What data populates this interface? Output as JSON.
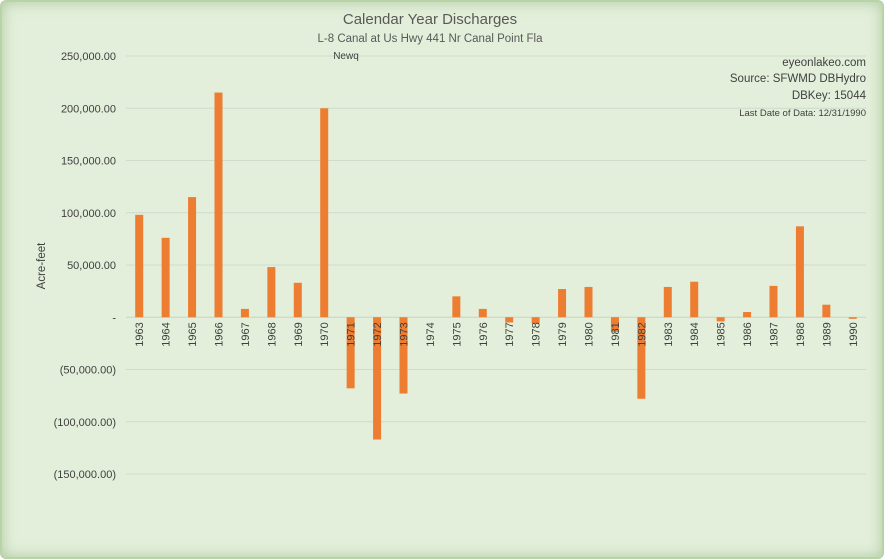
{
  "chart_data": {
    "type": "bar",
    "title": "Calendar Year Discharges",
    "subtitle": "L-8 Canal at Us Hwy 441 Nr Canal Point Fla",
    "series_label": "Newq",
    "ylabel": "Acre-feet",
    "xlabel": "",
    "ylim": [
      -150000,
      250000
    ],
    "ytick_values": [
      250000,
      200000,
      150000,
      100000,
      50000,
      0,
      -50000,
      -100000,
      -150000
    ],
    "ytick_labels": [
      "250,000.00",
      "200,000.00",
      "150,000.00",
      "100,000.00",
      "50,000.00",
      "-",
      "(50,000.00)",
      "(100,000.00)",
      "(150,000.00)"
    ],
    "grid": true,
    "bar_color": "#ed7d31",
    "categories": [
      "1963",
      "1964",
      "1965",
      "1966",
      "1967",
      "1968",
      "1969",
      "1970",
      "1971",
      "1972",
      "1973",
      "1974",
      "1975",
      "1976",
      "1977",
      "1978",
      "1979",
      "1980",
      "1981",
      "1982",
      "1983",
      "1984",
      "1985",
      "1986",
      "1987",
      "1988",
      "1989",
      "1990"
    ],
    "values": [
      98000,
      76000,
      115000,
      215000,
      8000,
      48000,
      33000,
      200000,
      -68000,
      -117000,
      -73000,
      0,
      20000,
      8000,
      -5000,
      -6000,
      27000,
      29000,
      -14000,
      -78000,
      29000,
      34000,
      -4000,
      5000,
      30000,
      87000,
      12000,
      -1500
    ]
  },
  "annotations": {
    "source_site": "eyeonlakeo.com",
    "source": "Source: SFWMD DBHydro",
    "dbkey": "DBKey: 15044",
    "last_date": "Last Date of Data: 12/31/1990"
  },
  "colors": {
    "background": "#e3efda",
    "gridline": "#cfdccb",
    "text": "#404040"
  }
}
